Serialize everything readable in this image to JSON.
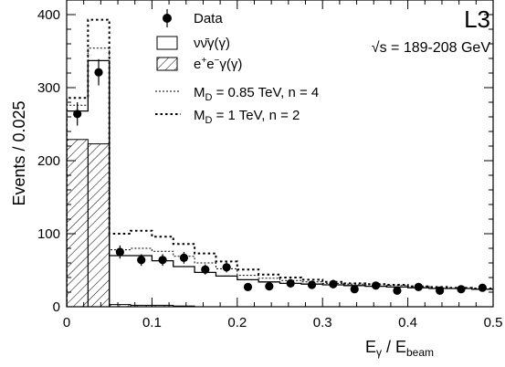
{
  "chart_data": {
    "type": "histogram",
    "experiment_label": "L3",
    "energy_label": "√s = 189-208 GeV",
    "xlabel": {
      "main": "E",
      "sub1": "γ",
      "mid": " / E",
      "sub2": "beam"
    },
    "ylabel": "Events / 0.025",
    "xlim": [
      0,
      0.5
    ],
    "ylim": [
      0,
      420
    ],
    "x_ticks": [
      0,
      0.1,
      0.2,
      0.3,
      0.4,
      0.5
    ],
    "x_tick_labels": [
      "0",
      "0.1",
      "0.2",
      "0.3",
      "0.4",
      "0.5"
    ],
    "y_ticks": [
      0,
      100,
      200,
      300,
      400
    ],
    "y_tick_labels": [
      "0",
      "100",
      "200",
      "300",
      "400"
    ],
    "legend_placement": "top-center",
    "legend": {
      "data": "Data",
      "nng_pre": "νν̄γ(γ)",
      "eeg": {
        "base": "e",
        "sup1": "+",
        "mid": "e",
        "sup2": "−",
        "tail": "γ(γ)"
      },
      "md085": {
        "pre": "M",
        "sub": "D",
        "post": " = 0.85 TeV, n = 4"
      },
      "md1": {
        "pre": "M",
        "sub": "D",
        "post": " = 1 TeV, n = 2"
      }
    },
    "bin_edges": [
      0,
      0.025,
      0.05,
      0.075,
      0.1,
      0.125,
      0.15,
      0.175,
      0.2,
      0.225,
      0.25,
      0.275,
      0.3,
      0.325,
      0.35,
      0.375,
      0.4,
      0.425,
      0.45,
      0.475,
      0.5
    ],
    "series": [
      {
        "name": "Data",
        "kind": "points",
        "x": [
          0.0125,
          0.0375,
          0.0625,
          0.0875,
          0.1125,
          0.1375,
          0.1625,
          0.1875,
          0.2125,
          0.2375,
          0.2625,
          0.2875,
          0.3125,
          0.3375,
          0.3625,
          0.3875,
          0.4125,
          0.4375,
          0.4625,
          0.4875
        ],
        "y": [
          264,
          321,
          75,
          64,
          64,
          67,
          51,
          54,
          27,
          28,
          32,
          30,
          31,
          24,
          29,
          22,
          27,
          22,
          24,
          26
        ],
        "yerr": [
          16,
          18,
          9,
          8,
          8,
          8,
          7,
          7,
          5,
          5,
          6,
          5,
          6,
          5,
          5,
          5,
          5,
          5,
          5,
          5
        ]
      },
      {
        "name": "νν̄γ(γ)",
        "kind": "step",
        "values": [
          268,
          337,
          70,
          70,
          63,
          55,
          47,
          42,
          37,
          34,
          32,
          31,
          30,
          29,
          28,
          27,
          26,
          25,
          25,
          24
        ]
      },
      {
        "name": "e+e−γ(γ)",
        "kind": "hatched",
        "values": [
          229,
          223,
          3,
          2,
          2,
          1,
          0,
          0,
          0,
          0,
          0,
          0,
          0,
          0,
          0,
          0,
          0,
          0,
          0,
          0
        ]
      },
      {
        "name": "M_D = 0.85 TeV, n = 4",
        "kind": "dotted-step",
        "values": [
          276,
          354,
          78,
          80,
          76,
          69,
          60,
          52,
          43,
          39,
          36,
          34,
          32,
          31,
          30,
          29,
          28,
          26,
          25,
          24
        ]
      },
      {
        "name": "M_D = 1 TeV, n = 2",
        "kind": "dotted-step-bold",
        "values": [
          286,
          393,
          100,
          104,
          96,
          86,
          73,
          62,
          51,
          44,
          40,
          37,
          34,
          32,
          31,
          30,
          28,
          27,
          26,
          25
        ]
      }
    ]
  }
}
